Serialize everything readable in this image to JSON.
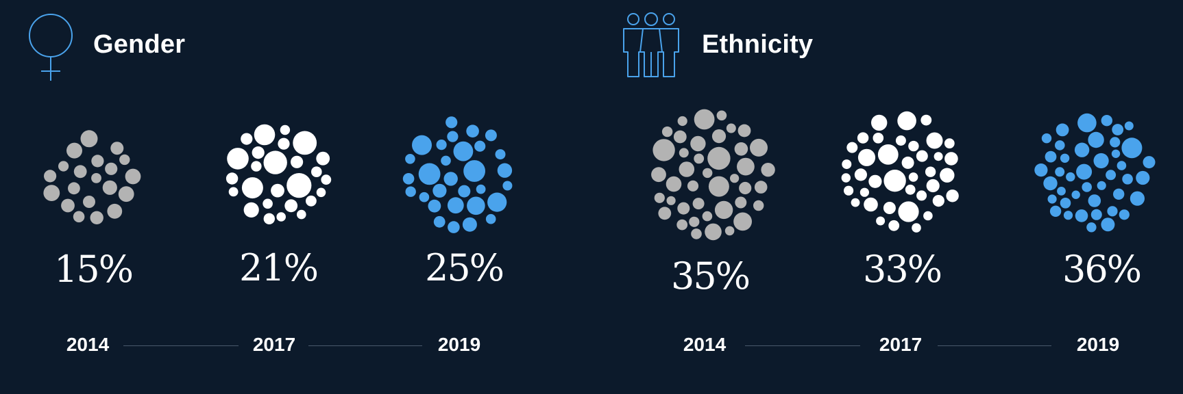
{
  "colors": {
    "background": "#0c1a2b",
    "y2014": "#b3b3b3",
    "y2017": "#ffffff",
    "y2019": "#4aa3ec",
    "icon": "#4aa3ec"
  },
  "chart_data": [
    {
      "type": "bubble-cluster",
      "title": "Gender",
      "icon": "female-symbol-icon",
      "categories": [
        "2014",
        "2017",
        "2019"
      ],
      "values": [
        15,
        21,
        25
      ],
      "labels": [
        "15%",
        "21%",
        "25%"
      ],
      "colors": [
        "#b3b3b3",
        "#ffffff",
        "#4aa3ec"
      ]
    },
    {
      "type": "bubble-cluster",
      "title": "Ethnicity",
      "icon": "people-group-icon",
      "categories": [
        "2014",
        "2017",
        "2019"
      ],
      "values": [
        35,
        33,
        36
      ],
      "labels": [
        "35%",
        "33%",
        "36%"
      ],
      "colors": [
        "#b3b3b3",
        "#ffffff",
        "#4aa3ec"
      ]
    }
  ]
}
